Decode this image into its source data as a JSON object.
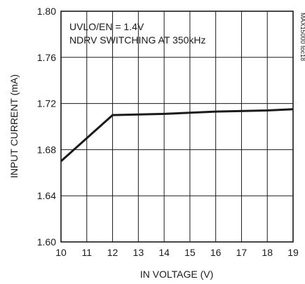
{
  "chart_data": {
    "type": "line",
    "xlabel": "IN VOLTAGE (V)",
    "ylabel": "INPUT CURRENT (mA)",
    "xlim": [
      10,
      19
    ],
    "ylim": [
      1.6,
      1.8
    ],
    "x_ticks": [
      "10",
      "11",
      "12",
      "13",
      "14",
      "15",
      "16",
      "17",
      "18",
      "19"
    ],
    "y_ticks": [
      "1.60",
      "1.64",
      "1.68",
      "1.72",
      "1.76",
      "1.80"
    ],
    "grid": true,
    "annotations": [
      "UVLO/EN = 1.4V",
      "NDRV SWITCHING AT 350kHz"
    ],
    "figure_id": "MAX15000 toc18",
    "series": [
      {
        "x": [
          10,
          12,
          14,
          16,
          18,
          19
        ],
        "y": [
          1.67,
          1.71,
          1.711,
          1.713,
          1.714,
          1.715
        ]
      }
    ]
  }
}
